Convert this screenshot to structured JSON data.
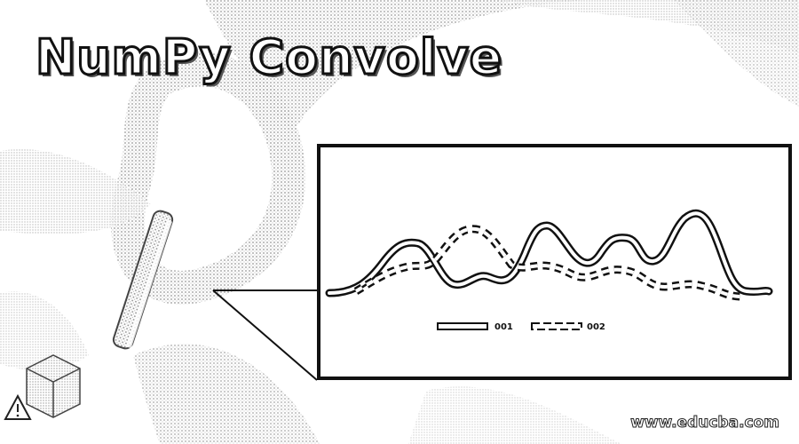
{
  "header": {
    "title": "NumPy Convolve"
  },
  "chart": {
    "legend": [
      {
        "label": "001",
        "style": "solid"
      },
      {
        "label": "002",
        "style": "dashed"
      }
    ]
  },
  "footer": {
    "watermark": "www.educba.com"
  },
  "colors": {
    "ink": "#111111",
    "stipple": "#9a9a9a",
    "background": "#ffffff"
  },
  "icons": [
    "magnifier-icon",
    "warning-icon",
    "cube-icon"
  ]
}
